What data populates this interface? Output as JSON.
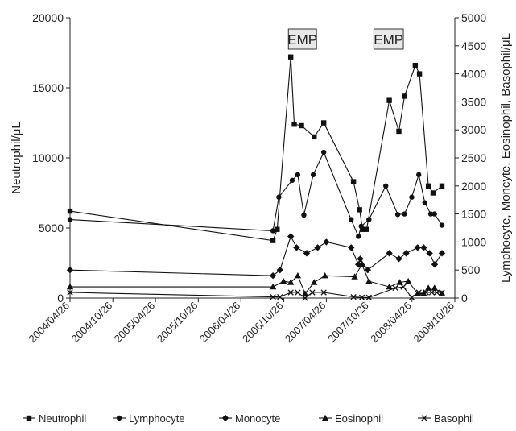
{
  "chart_data": {
    "type": "line",
    "title": "",
    "xlabel": "",
    "ylabel_left": "Neutrophil/μL",
    "ylabel_right": "Lymphocyte, Moncyte, Eosinophil, Basophil/μL",
    "ylim_left": [
      0,
      20000
    ],
    "ylim_right": [
      0,
      5000
    ],
    "yticks_left": [
      "0",
      "5000",
      "10000",
      "15000",
      "20000"
    ],
    "yticks_right": [
      "0",
      "500",
      "1000",
      "1500",
      "2000",
      "2500",
      "3000",
      "3500",
      "4000",
      "4500",
      "5000"
    ],
    "xlim": [
      "2004-04-26",
      "2008-10-26"
    ],
    "xticks": [
      "2004/04/26",
      "2004/10/26",
      "2005/04/26",
      "2005/10/26",
      "2006/04/26",
      "2006/10/26",
      "2007/04/26",
      "2007/10/26",
      "2008/04/26",
      "2008/10/26"
    ],
    "legend_position": "bottom",
    "annotations": [
      {
        "text": "EMP",
        "x_start": "2006-11-15",
        "x_end": "2007-03-15"
      },
      {
        "text": "EMP",
        "x_start": "2007-11-15",
        "x_end": "2008-03-20"
      }
    ],
    "series": [
      {
        "name": "Neutrophil",
        "axis": "left",
        "marker": "square",
        "x": [
          "2004-04-26",
          "2006-09-10",
          "2006-09-28",
          "2006-11-25",
          "2006-12-10",
          "2007-01-10",
          "2007-03-05",
          "2007-04-15",
          "2007-08-20",
          "2007-09-15",
          "2007-09-28",
          "2007-10-15",
          "2008-01-20",
          "2008-03-01",
          "2008-03-25",
          "2008-05-10",
          "2008-05-28",
          "2008-07-05",
          "2008-07-25",
          "2008-09-01"
        ],
        "values": [
          6200,
          4100,
          4900,
          17200,
          12400,
          12300,
          11500,
          12500,
          8300,
          6300,
          4900,
          4900,
          14100,
          11900,
          14400,
          16600,
          16000,
          8000,
          7500,
          8000
        ]
      },
      {
        "name": "Lymphocyte",
        "axis": "right",
        "marker": "circle",
        "x": [
          "2004-04-26",
          "2006-09-10",
          "2006-10-05",
          "2006-12-01",
          "2006-12-25",
          "2007-01-20",
          "2007-03-01",
          "2007-04-15",
          "2007-08-10",
          "2007-09-10",
          "2007-09-22",
          "2007-10-25",
          "2008-01-05",
          "2008-02-25",
          "2008-03-25",
          "2008-04-25",
          "2008-05-25",
          "2008-06-20",
          "2008-07-15",
          "2008-07-31",
          "2008-09-01"
        ],
        "values": [
          1400,
          1200,
          1800,
          2100,
          2200,
          1480,
          2200,
          2600,
          1400,
          1100,
          1280,
          1400,
          2000,
          1490,
          1500,
          1800,
          2200,
          1700,
          1500,
          1500,
          1300
        ]
      },
      {
        "name": "Monocyte",
        "axis": "right",
        "marker": "diamond",
        "x": [
          "2004-04-26",
          "2006-09-10",
          "2006-10-10",
          "2006-11-25",
          "2006-12-20",
          "2007-02-01",
          "2007-03-20",
          "2007-04-26",
          "2007-08-10",
          "2007-09-10",
          "2007-09-18",
          "2007-10-20",
          "2008-01-20",
          "2008-03-01",
          "2008-04-01",
          "2008-05-20",
          "2008-06-15",
          "2008-07-10",
          "2008-08-01",
          "2008-09-01"
        ],
        "values": [
          500,
          400,
          500,
          1100,
          900,
          800,
          900,
          1000,
          900,
          600,
          700,
          500,
          800,
          700,
          800,
          900,
          900,
          800,
          600,
          800
        ]
      },
      {
        "name": "Eosinophil",
        "axis": "right",
        "marker": "triangle",
        "x": [
          "2004-04-26",
          "2006-09-10",
          "2006-10-25",
          "2006-11-25",
          "2006-12-25",
          "2007-01-25",
          "2007-03-05",
          "2007-04-20",
          "2007-08-25",
          "2007-09-25",
          "2007-10-25",
          "2008-01-20",
          "2008-03-05",
          "2008-04-10",
          "2008-05-20",
          "2008-06-15",
          "2008-07-05",
          "2008-07-31",
          "2008-09-01"
        ],
        "values": [
          200,
          200,
          300,
          280,
          400,
          80,
          280,
          400,
          380,
          600,
          300,
          200,
          280,
          300,
          80,
          80,
          180,
          180,
          80
        ]
      },
      {
        "name": "Basophil",
        "axis": "right",
        "marker": "x",
        "x": [
          "2004-04-26",
          "2006-09-10",
          "2006-10-10",
          "2006-11-25",
          "2006-12-25",
          "2007-01-25",
          "2007-02-25",
          "2007-04-15",
          "2007-08-20",
          "2007-09-25",
          "2007-10-25",
          "2008-02-15",
          "2008-03-20",
          "2008-04-25",
          "2008-05-25",
          "2008-06-25",
          "2008-07-20",
          "2008-08-10",
          "2008-09-01"
        ],
        "values": [
          100,
          20,
          20,
          100,
          100,
          0,
          100,
          100,
          20,
          10,
          10,
          180,
          200,
          10,
          100,
          100,
          100,
          100,
          100
        ]
      }
    ]
  }
}
